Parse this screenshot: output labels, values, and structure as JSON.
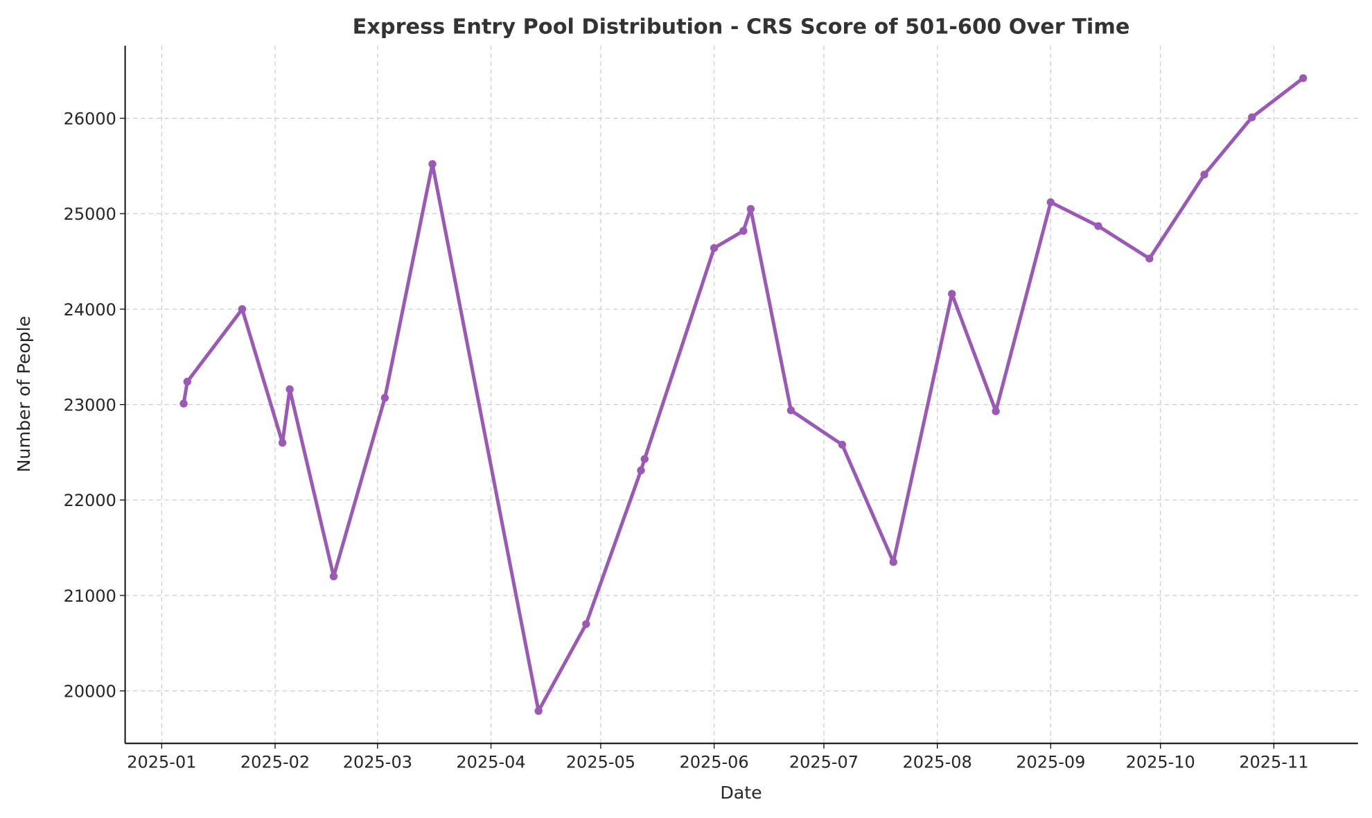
{
  "chart_data": {
    "type": "line",
    "title": "Express Entry Pool Distribution - CRS Score of 501-600 Over Time",
    "xlabel": "Date",
    "ylabel": "Number of People",
    "xlim": [
      "2024-12-22",
      "2025-11-24"
    ],
    "ylim": [
      19450,
      26760
    ],
    "grid": true,
    "line_color": "#9b59b6",
    "x_ticks": [
      "2025-01",
      "2025-02",
      "2025-03",
      "2025-04",
      "2025-05",
      "2025-06",
      "2025-07",
      "2025-08",
      "2025-09",
      "2025-10",
      "2025-11"
    ],
    "y_ticks": [
      20000,
      21000,
      22000,
      23000,
      24000,
      25000,
      26000
    ],
    "x": [
      "2025-01-07",
      "2025-01-08",
      "2025-01-23",
      "2025-02-03",
      "2025-02-05",
      "2025-02-17",
      "2025-03-03",
      "2025-03-16",
      "2025-04-14",
      "2025-04-27",
      "2025-05-12",
      "2025-05-13",
      "2025-06-01",
      "2025-06-09",
      "2025-06-11",
      "2025-06-22",
      "2025-07-06",
      "2025-07-20",
      "2025-08-05",
      "2025-08-17",
      "2025-09-01",
      "2025-09-14",
      "2025-09-28",
      "2025-10-13",
      "2025-10-26",
      "2025-11-09"
    ],
    "values": [
      23010,
      23240,
      24000,
      22600,
      23160,
      21200,
      23070,
      25520,
      19790,
      20700,
      22310,
      22430,
      24640,
      24820,
      25050,
      22940,
      22580,
      21350,
      24160,
      22930,
      25120,
      24870,
      24530,
      25410,
      26010,
      26420
    ]
  }
}
